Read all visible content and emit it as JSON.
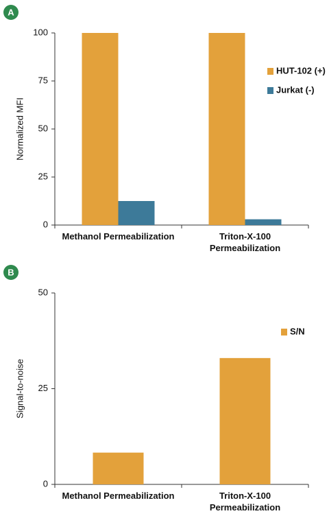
{
  "chart_data": [
    {
      "type": "bar",
      "panel": "A",
      "y_label": "Normalized MFI",
      "categories": [
        "Methanol Permeabilization",
        "Triton-X-100 Permeabilization"
      ],
      "series": [
        {
          "name": "HUT-102 (+)",
          "color": "#e3a13b",
          "values": [
            100,
            100
          ]
        },
        {
          "name": "Jurkat (-)",
          "color": "#3d7a99",
          "values": [
            12.5,
            3
          ]
        }
      ],
      "ylim": [
        0,
        100
      ],
      "yticks": [
        0,
        25,
        50,
        75,
        100
      ],
      "legend": "right"
    },
    {
      "type": "bar",
      "panel": "B",
      "y_label": "Signal-to-noise",
      "categories": [
        "Methanol Permeabilization",
        "Triton-X-100 Permeabilization"
      ],
      "series": [
        {
          "name": "S/N",
          "color": "#e3a13b",
          "values": [
            8.3,
            33
          ]
        }
      ],
      "ylim": [
        0,
        50
      ],
      "yticks": [
        0,
        25,
        50
      ],
      "legend": "right"
    }
  ]
}
